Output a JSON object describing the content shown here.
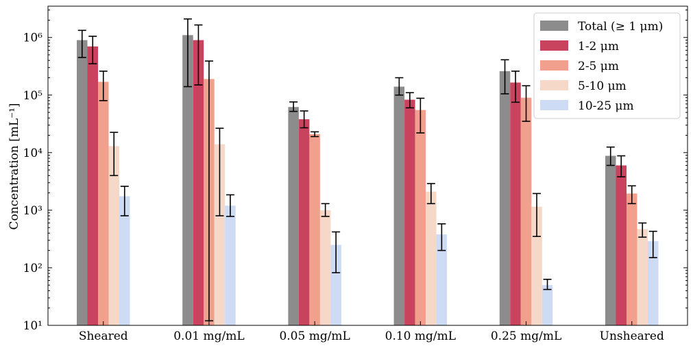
{
  "chart_data": {
    "type": "bar",
    "title": "",
    "xlabel": "",
    "ylabel": "Concentration [mL⁻¹]",
    "yscale": "log",
    "ylim": [
      10,
      3500000
    ],
    "yticks": [
      {
        "value": 10,
        "label": "10¹"
      },
      {
        "value": 100,
        "label": "10²"
      },
      {
        "value": 1000,
        "label": "10³"
      },
      {
        "value": 10000,
        "label": "10⁴"
      },
      {
        "value": 100000,
        "label": "10⁵"
      },
      {
        "value": 1000000,
        "label": "10⁶"
      }
    ],
    "grid": false,
    "legend_position": "top-right",
    "categories": [
      "Sheared",
      "0.01 mg/mL",
      "0.05 mg/mL",
      "0.10 mg/mL",
      "0.25 mg/mL",
      "Unsheared"
    ],
    "series": [
      {
        "name": "Total (≥ 1 μm)",
        "color": "#8c8c8c",
        "values": [
          900000,
          1100000,
          62000,
          140000,
          260000,
          8800
        ],
        "err_low": [
          450000,
          140000,
          52000,
          100000,
          105000,
          6000
        ],
        "err_high": [
          1330000,
          2100000,
          76000,
          200000,
          410000,
          12500
        ]
      },
      {
        "name": "1-2 μm",
        "color": "#c9435e",
        "values": [
          700000,
          900000,
          38000,
          83000,
          165000,
          6000
        ],
        "err_low": [
          350000,
          150000,
          27000,
          60000,
          75000,
          3800
        ],
        "err_high": [
          1050000,
          1650000,
          53000,
          110000,
          260000,
          8800
        ]
      },
      {
        "name": "2-5 μm",
        "color": "#f0a08d",
        "values": [
          170000,
          190000,
          21000,
          55000,
          90000,
          1950
        ],
        "err_low": [
          80000,
          12,
          19000,
          22000,
          35000,
          1300
        ],
        "err_high": [
          260000,
          390000,
          23000,
          88000,
          145000,
          2650
        ]
      },
      {
        "name": "5-10 μm",
        "color": "#f5d8c8",
        "values": [
          13000,
          14000,
          1000,
          2100,
          1150,
          470
        ],
        "err_low": [
          4000,
          800,
          780,
          1300,
          350,
          340
        ],
        "err_high": [
          22500,
          26500,
          1300,
          2900,
          1950,
          600
        ]
      },
      {
        "name": "10-25 μm",
        "color": "#cddbf5",
        "values": [
          1750,
          1200,
          250,
          380,
          50,
          290
        ],
        "err_low": [
          800,
          780,
          82,
          200,
          42,
          150
        ],
        "err_high": [
          2600,
          1850,
          420,
          580,
          63,
          430
        ]
      }
    ]
  }
}
